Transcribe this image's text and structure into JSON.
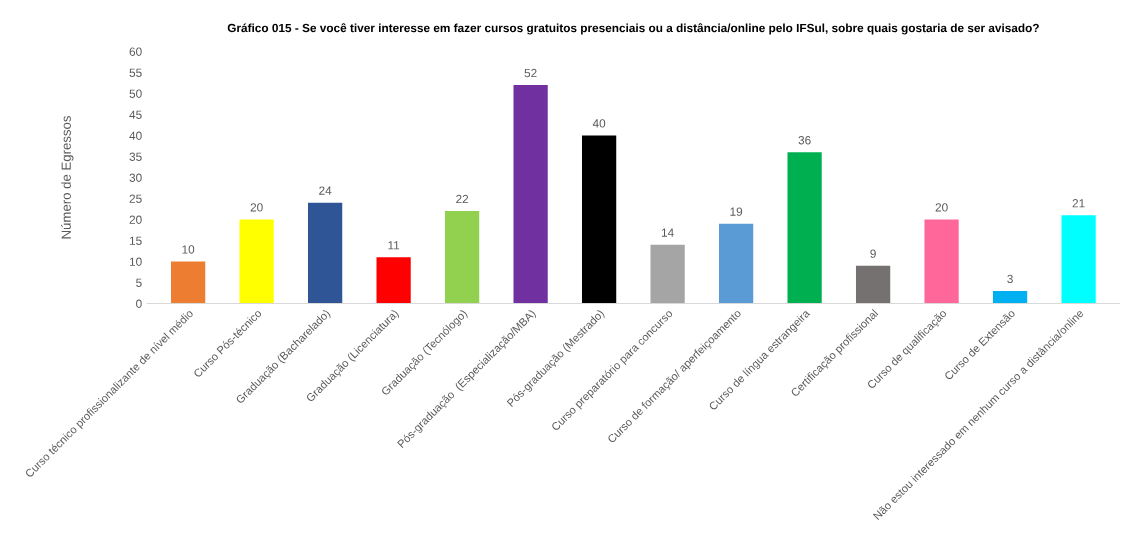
{
  "chart_data": {
    "type": "bar",
    "title": "Gráfico 015 - Se você tiver interesse em fazer cursos gratuitos presenciais ou a distância/online pelo IFSul, sobre quais gostaria de ser avisado?",
    "ylabel": "Número de Egressos",
    "categories": [
      "Curso técnico profissionalizante de nível médio",
      "Curso Pós-técnico",
      "Graduação (Bacharelado)",
      "Graduação (Licenciatura)",
      "Graduação (Tecnólogo)",
      "Pós-graduação  (Especialização/MBA)",
      "Pós-graduação (Mestrado)",
      "Curso preparatório para concurso",
      "Curso de formação/ aperfeiçoamento",
      "Curso de língua estrangeira",
      "Certificação profissional",
      "Curso de qualificação",
      "Curso de Extensão",
      "Não estou interessado em nenhum curso a distância/online"
    ],
    "values": [
      10,
      20,
      24,
      11,
      22,
      52,
      40,
      14,
      19,
      36,
      9,
      20,
      3,
      21
    ],
    "colors": [
      "#ed7d31",
      "#ffff00",
      "#2f5597",
      "#ff0000",
      "#92d050",
      "#7030a0",
      "#000000",
      "#a5a5a5",
      "#5b9bd5",
      "#00b050",
      "#767171",
      "#ff6699",
      "#00b0f0",
      "#00ffff"
    ],
    "ylim": [
      0,
      60
    ],
    "yticks": [
      0,
      5,
      10,
      15,
      20,
      25,
      30,
      35,
      40,
      45,
      50,
      55,
      60
    ],
    "data_labels": true,
    "grid": false,
    "legend": false
  }
}
